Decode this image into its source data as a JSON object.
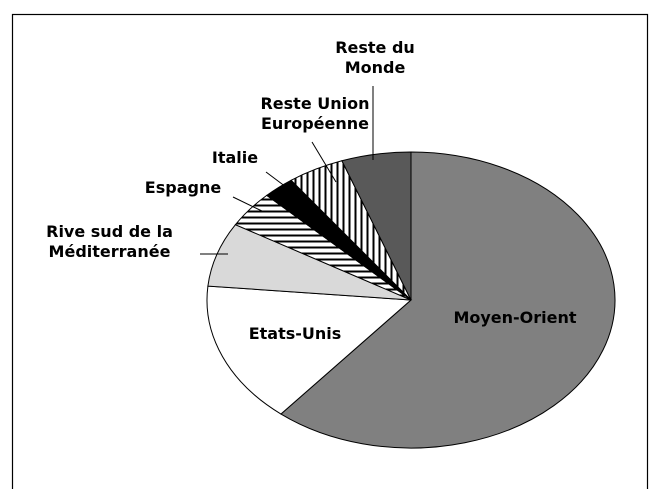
{
  "chart_data": {
    "type": "pie",
    "categories": [
      "Moyen-Orient",
      "Etats-Unis",
      "Rive sud de la Méditerranée",
      "Espagne",
      "Italie",
      "Reste Union Européenne",
      "Reste du Monde"
    ],
    "values": [
      61,
      15.5,
      7,
      4,
      2.5,
      4.5,
      5.5
    ],
    "colors": [
      "#808080",
      "#ffffff",
      "#d9d9d9",
      "hatch-horizontal",
      "#000000",
      "hatch-vertical",
      "#595959"
    ]
  }
}
